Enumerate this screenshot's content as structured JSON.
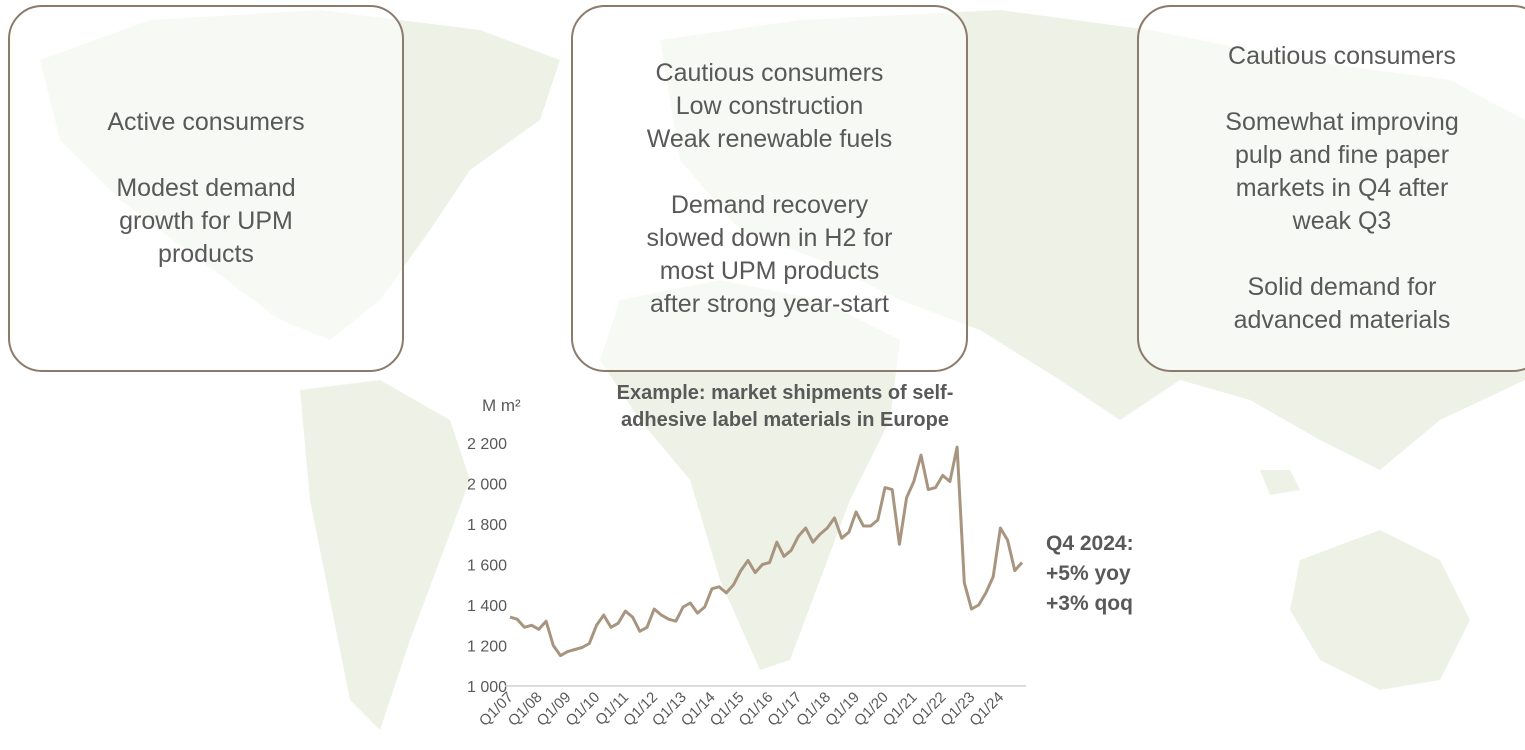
{
  "boxes": [
    {
      "paragraphs": [
        [
          "Active consumers"
        ],
        [
          "Modest demand",
          "growth for UPM",
          "products"
        ]
      ]
    },
    {
      "paragraphs": [
        [
          "Cautious consumers",
          "Low construction",
          "Weak renewable fuels"
        ],
        [
          "Demand recovery",
          "slowed down in H2 for",
          "most UPM products",
          "after strong year-start"
        ]
      ]
    },
    {
      "paragraphs": [
        [
          "Cautious consumers"
        ],
        [
          "Somewhat improving",
          "pulp and fine paper",
          "markets in Q4 after",
          "weak Q3"
        ],
        [
          "Solid demand for",
          "advanced materials"
        ]
      ]
    }
  ],
  "chart_data": {
    "type": "line",
    "title": [
      "Example: market shipments of self-",
      "adhesive label materials in Europe"
    ],
    "y_unit": "M m²",
    "annotation": [
      "Q4 2024:",
      "+5% yoy",
      "+3% qoq"
    ],
    "categories": [
      "Q1/07",
      null,
      null,
      null,
      "Q1/08",
      null,
      null,
      null,
      "Q1/09",
      null,
      null,
      null,
      "Q1/10",
      null,
      null,
      null,
      "Q1/11",
      null,
      null,
      null,
      "Q1/12",
      null,
      null,
      null,
      "Q1/13",
      null,
      null,
      null,
      "Q1/14",
      null,
      null,
      null,
      "Q1/15",
      null,
      null,
      null,
      "Q1/16",
      null,
      null,
      null,
      "Q1/17",
      null,
      null,
      null,
      "Q1/18",
      null,
      null,
      null,
      "Q1/19",
      null,
      null,
      null,
      "Q1/20",
      null,
      null,
      null,
      "Q1/21",
      null,
      null,
      null,
      "Q1/22",
      null,
      null,
      null,
      "Q1/23",
      null,
      null,
      null,
      "Q1/24",
      null,
      null,
      null
    ],
    "series": [
      {
        "name": "Market shipments",
        "color": "#a89580",
        "values": [
          1340,
          1330,
          1290,
          1300,
          1280,
          1320,
          1200,
          1150,
          1170,
          1180,
          1190,
          1210,
          1300,
          1350,
          1290,
          1310,
          1370,
          1340,
          1270,
          1290,
          1380,
          1350,
          1330,
          1320,
          1390,
          1410,
          1360,
          1390,
          1480,
          1490,
          1460,
          1500,
          1570,
          1620,
          1560,
          1600,
          1610,
          1710,
          1640,
          1670,
          1740,
          1780,
          1710,
          1750,
          1780,
          1830,
          1730,
          1760,
          1860,
          1790,
          1790,
          1820,
          1980,
          1970,
          1700,
          1930,
          2010,
          2140,
          1970,
          1980,
          2040,
          2010,
          2180,
          1510,
          1380,
          1400,
          1460,
          1540,
          1780,
          1720,
          1570,
          1610
        ]
      }
    ],
    "ylim": [
      1000,
      2200
    ],
    "yticks": [
      {
        "value": 1000,
        "label": "1 000"
      },
      {
        "value": 1200,
        "label": "1 200"
      },
      {
        "value": 1400,
        "label": "1 400"
      },
      {
        "value": 1600,
        "label": "1 600"
      },
      {
        "value": 1800,
        "label": "1 800"
      },
      {
        "value": 2000,
        "label": "2 000"
      },
      {
        "value": 2200,
        "label": "2 200"
      }
    ]
  }
}
